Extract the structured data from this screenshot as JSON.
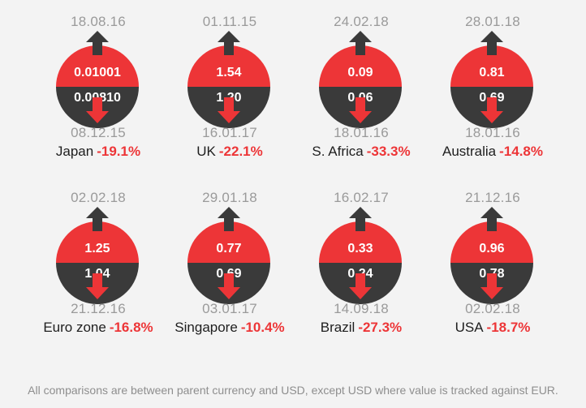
{
  "colors": {
    "accent": "#ed3537",
    "dark": "#3a3a3a",
    "muted": "#9a9a9a",
    "background": "#f3f3f3"
  },
  "icons": {
    "up": "arrow-up-icon",
    "down": "arrow-down-icon"
  },
  "items": [
    {
      "country": "Japan",
      "change": "-19.1%",
      "high_date": "18.08.16",
      "high": "0.01001",
      "low": "0.00810",
      "low_date": "08.12.15"
    },
    {
      "country": "UK",
      "change": "-22.1%",
      "high_date": "01.11.15",
      "high": "1.54",
      "low": "1.20",
      "low_date": "16.01.17"
    },
    {
      "country": "S. Africa",
      "change": "-33.3%",
      "high_date": "24.02.18",
      "high": "0.09",
      "low": "0.06",
      "low_date": "18.01.16"
    },
    {
      "country": "Australia",
      "change": "-14.8%",
      "high_date": "28.01.18",
      "high": "0.81",
      "low": "0.69",
      "low_date": "18.01.16"
    },
    {
      "country": "Euro zone",
      "change": "-16.8%",
      "high_date": "02.02.18",
      "high": "1.25",
      "low": "1.04",
      "low_date": "21.12.16"
    },
    {
      "country": "Singapore",
      "change": "-10.4%",
      "high_date": "29.01.18",
      "high": "0.77",
      "low": "0.69",
      "low_date": "03.01.17"
    },
    {
      "country": "Brazil",
      "change": "-27.3%",
      "high_date": "16.02.17",
      "high": "0.33",
      "low": "0.24",
      "low_date": "14.09.18"
    },
    {
      "country": "USA",
      "change": "-18.7%",
      "high_date": "21.12.16",
      "high": "0.96",
      "low": "0.78",
      "low_date": "02.02.18"
    }
  ],
  "footnote": "All comparisons are between parent currency and USD, except USD where value is tracked against EUR."
}
